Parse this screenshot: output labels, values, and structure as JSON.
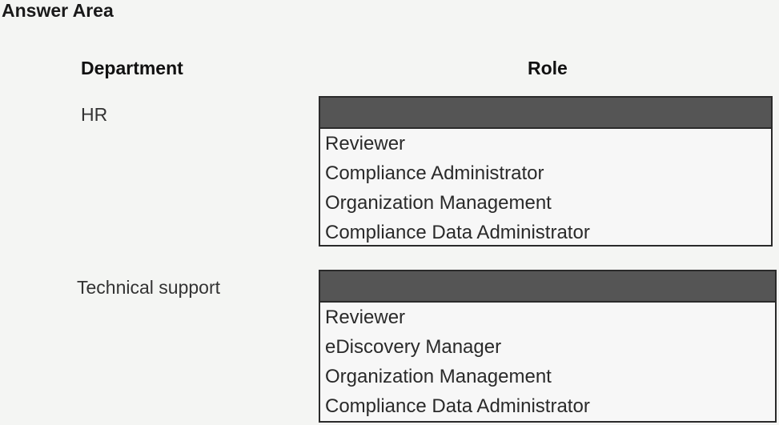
{
  "title": "Answer Area",
  "headers": {
    "department": "Department",
    "role": "Role"
  },
  "rows": [
    {
      "department": "HR",
      "options": [
        "Reviewer",
        "Compliance Administrator",
        "Organization Management",
        "Compliance Data Administrator"
      ]
    },
    {
      "department": "Technical support",
      "options": [
        "Reviewer",
        "eDiscovery Manager",
        "Organization Management",
        "Compliance Data Administrator"
      ]
    }
  ]
}
